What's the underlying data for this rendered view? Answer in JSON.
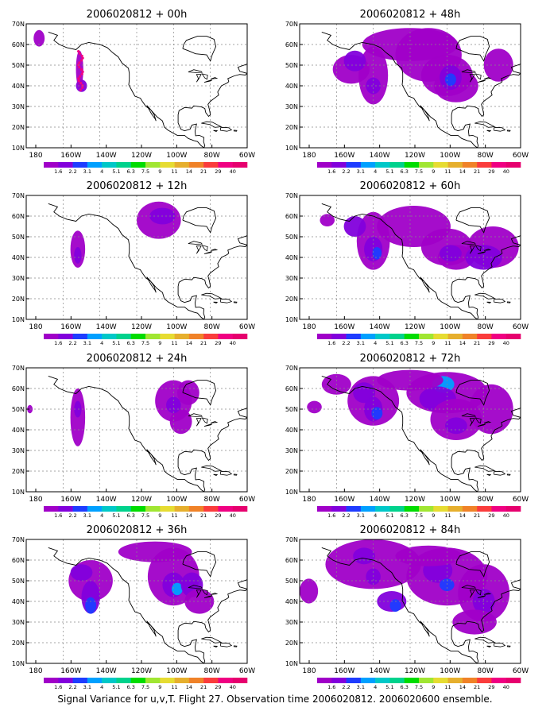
{
  "caption": "Signal Variance for u,v,T. Flight 27. Observation time 2006020812. 2006020600 ensemble.",
  "lon_labels": [
    "180",
    "160W",
    "140W",
    "120W",
    "100W",
    "80W",
    "60W"
  ],
  "lat_labels": [
    "10N",
    "20N",
    "30N",
    "40N",
    "50N",
    "60N",
    "70N"
  ],
  "colorbar": {
    "labels": [
      "1.6",
      "2.2",
      "3.1",
      "4",
      "5.1",
      "6.3",
      "7.5",
      "9",
      "11",
      "14",
      "21",
      "29",
      "40"
    ],
    "colors": [
      "#a000c8",
      "#8200dc",
      "#1e3cff",
      "#00a0ff",
      "#00c8c8",
      "#00d28c",
      "#00dc00",
      "#a0e632",
      "#e6dc32",
      "#e6af2d",
      "#f08228",
      "#fa3c3c",
      "#f00082",
      "#e6006e"
    ]
  },
  "palette_fill": {
    "light": "#a000c8",
    "mid": "#8200dc",
    "blue": "#1e3cff",
    "cyan": "#00a0ff"
  },
  "panels": [
    {
      "title": "2006020812 + 00h"
    },
    {
      "title": "2006020812 + 48h"
    },
    {
      "title": "2006020812 + 12h"
    },
    {
      "title": "2006020812 + 60h"
    },
    {
      "title": "2006020812 + 24h"
    },
    {
      "title": "2006020812 + 72h"
    },
    {
      "title": "2006020812 + 36h"
    },
    {
      "title": "2006020812 + 84h"
    }
  ]
}
